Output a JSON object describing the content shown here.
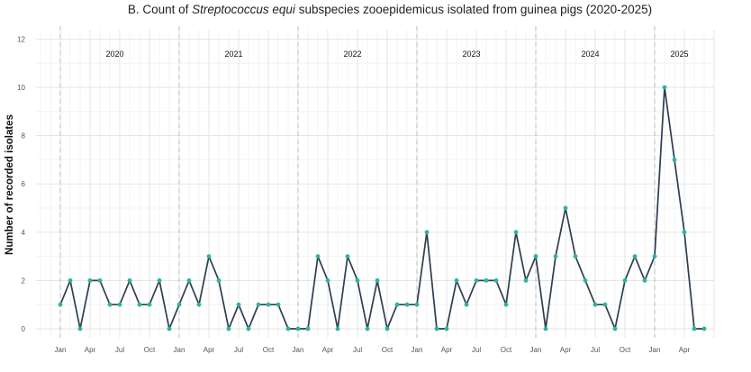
{
  "chart_data": {
    "type": "line",
    "title": {
      "prefix": "B. Count of ",
      "italic": "Streptococcus equi",
      "suffix": " subspecies zooepidemicus isolated from guinea pigs (2020-2025)"
    },
    "ylabel": "Number of recorded isolates",
    "ylim": [
      0,
      12
    ],
    "yticks": [
      0,
      2,
      4,
      6,
      8,
      10,
      12
    ],
    "xticks": [
      "Jan",
      "Apr",
      "Jul",
      "Oct",
      "Jan",
      "Apr",
      "Jul",
      "Oct",
      "Jan",
      "Apr",
      "Jul",
      "Oct",
      "Jan",
      "Apr",
      "Jul",
      "Oct",
      "Jan",
      "Apr",
      "Jul",
      "Oct",
      "Jan",
      "Apr"
    ],
    "year_labels": [
      "2020",
      "2021",
      "2022",
      "2023",
      "2024",
      "2025"
    ],
    "x_start": "2020-01",
    "values": [
      1,
      2,
      0,
      2,
      2,
      1,
      1,
      2,
      1,
      1,
      2,
      0,
      1,
      2,
      1,
      3,
      2,
      0,
      1,
      0,
      1,
      1,
      1,
      0,
      0,
      0,
      3,
      2,
      0,
      3,
      2,
      0,
      2,
      0,
      1,
      1,
      1,
      4,
      0,
      0,
      2,
      1,
      2,
      2,
      2,
      1,
      4,
      2,
      3,
      0,
      3,
      5,
      3,
      2,
      1,
      1,
      0,
      2,
      3,
      2,
      3,
      10,
      7,
      4,
      0,
      0
    ],
    "line_color": "#2e3d4f",
    "point_color": "#2bb59a",
    "grid": true,
    "year_separators": true
  }
}
